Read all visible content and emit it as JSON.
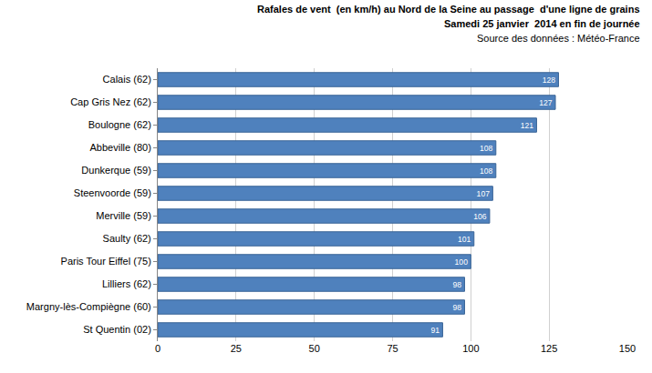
{
  "chart_data": {
    "type": "bar",
    "orientation": "horizontal",
    "title": "Rafales de vent  (en km/h) au Nord de la Seine au passage  d'une ligne de grains",
    "subtitle": "Samedi 25 janvier  2014 en fin de journée",
    "annotations": [
      "Source des données : Météo-France"
    ],
    "categories": [
      "Calais (62)",
      "Cap Gris Nez (62)",
      "Boulogne (62)",
      "Abbeville (80)",
      "Dunkerque (59)",
      "Steenvoorde (59)",
      "Merville (59)",
      "Saulty (62)",
      "Paris Tour Eiffel (75)",
      "Lilliers (62)",
      "Margny-lès-Compiègne (60)",
      "St Quentin (02)"
    ],
    "values": [
      128,
      127,
      121,
      108,
      108,
      107,
      106,
      101,
      100,
      98,
      98,
      91
    ],
    "color": "#4f81bd",
    "xlim": [
      0,
      150
    ],
    "xticks": [
      0,
      25,
      50,
      75,
      100,
      125,
      150
    ],
    "grid": true,
    "data_labels": true
  }
}
